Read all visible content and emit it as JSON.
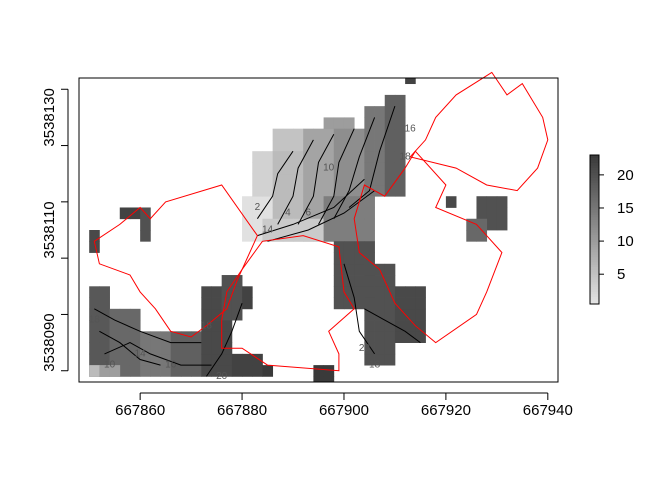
{
  "chart_data": {
    "type": "heatmap",
    "title": "",
    "xlabel": "",
    "ylabel": "",
    "xlim": [
      667848,
      667942
    ],
    "ylim": [
      3538083,
      3538137
    ],
    "x_ticks": [
      667860,
      667880,
      667900,
      667920,
      667940
    ],
    "y_ticks": [
      3538090,
      3538110,
      3538130
    ],
    "x_tick_labels": [
      "667860",
      "667880",
      "667900",
      "667920",
      "667940"
    ],
    "y_tick_labels": [
      "3538090",
      "3538110",
      "3538130"
    ],
    "cell_size": 2,
    "colorbar": {
      "range": [
        0.5,
        23
      ],
      "ticks": [
        5,
        10,
        15,
        20
      ],
      "tick_labels": [
        "5",
        "10",
        "15",
        "20"
      ],
      "low_color": "#e5e5e5",
      "high_color": "#3a3a3a"
    },
    "grid": false,
    "legend": "right",
    "raster_blocks": [
      {
        "x": [
          667850,
          667854
        ],
        "y": [
          3538084,
          3538100
        ],
        "v": 19
      },
      {
        "x": [
          667850,
          667852
        ],
        "y": [
          3538106,
          3538110
        ],
        "v": 21
      },
      {
        "x": [
          667856,
          667860
        ],
        "y": [
          3538112,
          3538114
        ],
        "v": 22
      },
      {
        "x": [
          667860,
          667862
        ],
        "y": [
          3538108,
          3538114
        ],
        "v": 20
      },
      {
        "x": [
          667854,
          667860
        ],
        "y": [
          3538084,
          3538096
        ],
        "v": 17
      },
      {
        "x": [
          667860,
          667866
        ],
        "y": [
          3538084,
          3538092
        ],
        "v": 15
      },
      {
        "x": [
          667866,
          667872
        ],
        "y": [
          3538084,
          3538092
        ],
        "v": 18
      },
      {
        "x": [
          667872,
          667878
        ],
        "y": [
          3538084,
          3538100
        ],
        "v": 21
      },
      {
        "x": [
          667878,
          667884
        ],
        "y": [
          3538084,
          3538088
        ],
        "v": 22
      },
      {
        "x": [
          667884,
          667886
        ],
        "y": [
          3538084,
          3538086
        ],
        "v": 23
      },
      {
        "x": [
          667876,
          667880
        ],
        "y": [
          3538094,
          3538102
        ],
        "v": 20
      },
      {
        "x": [
          667880,
          667882
        ],
        "y": [
          3538096,
          3538100
        ],
        "v": 22
      },
      {
        "x": [
          667850,
          667852
        ],
        "y": [
          3538084,
          3538086
        ],
        "v": 6
      },
      {
        "x": [
          667852,
          667856
        ],
        "y": [
          3538084,
          3538086
        ],
        "v": 10
      },
      {
        "x": [
          667880,
          667886
        ],
        "y": [
          3538108,
          3538116
        ],
        "v": 1
      },
      {
        "x": [
          667882,
          667888
        ],
        "y": [
          3538116,
          3538124
        ],
        "v": 3
      },
      {
        "x": [
          667886,
          667892
        ],
        "y": [
          3538124,
          3538128
        ],
        "v": 5
      },
      {
        "x": [
          667886,
          667892
        ],
        "y": [
          3538108,
          3538124
        ],
        "v": 6
      },
      {
        "x": [
          667892,
          667898
        ],
        "y": [
          3538108,
          3538128
        ],
        "v": 9
      },
      {
        "x": [
          667896,
          667902
        ],
        "y": [
          3538128,
          3538130
        ],
        "v": 10
      },
      {
        "x": [
          667898,
          667904
        ],
        "y": [
          3538112,
          3538128
        ],
        "v": 12
      },
      {
        "x": [
          667904,
          667908
        ],
        "y": [
          3538116,
          3538132
        ],
        "v": 15
      },
      {
        "x": [
          667908,
          667912
        ],
        "y": [
          3538116,
          3538134
        ],
        "v": 18
      },
      {
        "x": [
          667912,
          667914
        ],
        "y": [
          3538136,
          3538138
        ],
        "v": 22
      },
      {
        "x": [
          667884,
          667896
        ],
        "y": [
          3538108,
          3538112
        ],
        "v": 4
      },
      {
        "x": [
          667896,
          667906
        ],
        "y": [
          3538108,
          3538116
        ],
        "v": 14
      },
      {
        "x": [
          667898,
          667906
        ],
        "y": [
          3538096,
          3538108
        ],
        "v": 20
      },
      {
        "x": [
          667904,
          667910
        ],
        "y": [
          3538086,
          3538104
        ],
        "v": 20
      },
      {
        "x": [
          667910,
          667916
        ],
        "y": [
          3538090,
          3538100
        ],
        "v": 21
      },
      {
        "x": [
          667894,
          667898
        ],
        "y": [
          3538082,
          3538086
        ],
        "v": 23
      },
      {
        "x": [
          667920,
          667922
        ],
        "y": [
          3538114,
          3538116
        ],
        "v": 21
      },
      {
        "x": [
          667926,
          667932
        ],
        "y": [
          3538110,
          3538116
        ],
        "v": 20
      },
      {
        "x": [
          667924,
          667928
        ],
        "y": [
          3538108,
          3538112
        ],
        "v": 17
      }
    ],
    "contour_labels": [
      {
        "x": 667854,
        "y": 3538086,
        "text": "10"
      },
      {
        "x": 667860,
        "y": 3538088,
        "text": "14"
      },
      {
        "x": 667866,
        "y": 3538086,
        "text": "16"
      },
      {
        "x": 667876,
        "y": 3538084,
        "text": "20"
      },
      {
        "x": 667851,
        "y": 3538094,
        "text": "18"
      },
      {
        "x": 667873,
        "y": 3538093,
        "text": "18"
      },
      {
        "x": 667883,
        "y": 3538114,
        "text": "2"
      },
      {
        "x": 667885,
        "y": 3538110,
        "text": "14"
      },
      {
        "x": 667889,
        "y": 3538113,
        "text": "4"
      },
      {
        "x": 667893,
        "y": 3538113,
        "text": "6"
      },
      {
        "x": 667897,
        "y": 3538121,
        "text": "10"
      },
      {
        "x": 667913,
        "y": 3538128,
        "text": "16"
      },
      {
        "x": 667912,
        "y": 3538123,
        "text": "18"
      },
      {
        "x": 667904,
        "y": 3538089,
        "text": "20"
      },
      {
        "x": 667906,
        "y": 3538086,
        "text": "18"
      }
    ],
    "series": [
      {
        "type": "polygon",
        "color": "#ff0000",
        "points": [
          [
            667851,
            3538108
          ],
          [
            667856,
            3538111
          ],
          [
            667860,
            3538114
          ],
          [
            667862,
            3538112
          ],
          [
            667865,
            3538115
          ],
          [
            667876,
            3538118
          ],
          [
            667883,
            3538109
          ],
          [
            667879,
            3538101
          ],
          [
            667877,
            3538096
          ],
          [
            667873,
            3538093
          ],
          [
            667870,
            3538091
          ],
          [
            667866,
            3538092
          ],
          [
            667863,
            3538096
          ],
          [
            667860,
            3538099
          ],
          [
            667858,
            3538102
          ],
          [
            667852,
            3538104
          ]
        ]
      },
      {
        "type": "polygon",
        "color": "#ff0000",
        "points": [
          [
            667877,
            3538099
          ],
          [
            667880,
            3538103
          ],
          [
            667884,
            3538108
          ],
          [
            667892,
            3538109
          ],
          [
            667899,
            3538107
          ],
          [
            667900,
            3538099
          ],
          [
            667902,
            3538096
          ],
          [
            667897,
            3538092
          ],
          [
            667899,
            3538088
          ],
          [
            667899,
            3538085
          ],
          [
            667885,
            3538086
          ],
          [
            667880,
            3538089
          ],
          [
            667876,
            3538089
          ],
          [
            667876,
            3538094
          ]
        ]
      },
      {
        "type": "polygon",
        "color": "#ff0000",
        "points": [
          [
            667904,
            3538118
          ],
          [
            667908,
            3538116
          ],
          [
            667912,
            3538121
          ],
          [
            667914,
            3538124
          ],
          [
            667920,
            3538118
          ],
          [
            667918,
            3538114
          ],
          [
            667926,
            3538111
          ],
          [
            667931,
            3538106
          ],
          [
            667928,
            3538099
          ],
          [
            667926,
            3538095
          ],
          [
            667918,
            3538090
          ],
          [
            667914,
            3538093
          ],
          [
            667910,
            3538097
          ],
          [
            667907,
            3538103
          ],
          [
            667903,
            3538106
          ],
          [
            667902,
            3538112
          ]
        ]
      },
      {
        "type": "polygon",
        "color": "#ff0000",
        "points": [
          [
            667913,
            3538123
          ],
          [
            667916,
            3538126
          ],
          [
            667918,
            3538130
          ],
          [
            667922,
            3538134
          ],
          [
            667929,
            3538138
          ],
          [
            667932,
            3538134
          ],
          [
            667935,
            3538136
          ],
          [
            667939,
            3538130
          ],
          [
            667940,
            3538126
          ],
          [
            667938,
            3538121
          ],
          [
            667934,
            3538117
          ],
          [
            667928,
            3538118
          ],
          [
            667922,
            3538121
          ]
        ]
      }
    ]
  }
}
